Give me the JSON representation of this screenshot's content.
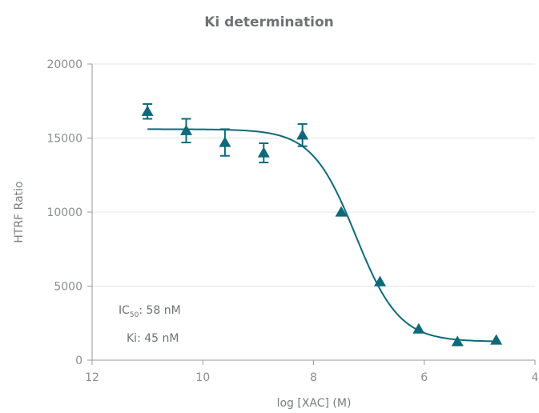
{
  "chart_data": {
    "type": "scatter",
    "title": "Ki determination",
    "xlabel": "log [XAC] (M)",
    "ylabel": "HTRF Ratio",
    "x_axis_reversed": true,
    "xlim": [
      12,
      4
    ],
    "ylim": [
      0,
      20000
    ],
    "x_ticks": [
      "12",
      "10",
      "8",
      "6",
      "4"
    ],
    "y_ticks": [
      "0",
      "5000",
      "10000",
      "15000",
      "20000"
    ],
    "grid": "horizontal",
    "color": "#0e6a7a",
    "series": [
      {
        "marker": "triangle",
        "points": [
          {
            "x": 11.0,
            "y": 16800,
            "err": 500
          },
          {
            "x": 10.3,
            "y": 15500,
            "err": 800
          },
          {
            "x": 9.6,
            "y": 14700,
            "err": 900
          },
          {
            "x": 8.9,
            "y": 14000,
            "err": 650
          },
          {
            "x": 8.2,
            "y": 15200,
            "err": 750
          },
          {
            "x": 7.5,
            "y": 10000
          },
          {
            "x": 6.8,
            "y": 5300
          },
          {
            "x": 6.1,
            "y": 2100
          },
          {
            "x": 5.4,
            "y": 1250
          },
          {
            "x": 4.7,
            "y": 1350
          }
        ]
      }
    ],
    "fit_curve": {
      "model": "four-parameter logistic",
      "top": 15600,
      "bottom": 1250,
      "logIC50": -7.24,
      "hill": 1.1,
      "x_range": [
        11.0,
        4.7
      ]
    },
    "annotations": {
      "ic50_prefix": "IC",
      "ic50_sub": "50",
      "ic50_value": ": 58 nM",
      "ki": "Ki: 45 nM"
    }
  }
}
